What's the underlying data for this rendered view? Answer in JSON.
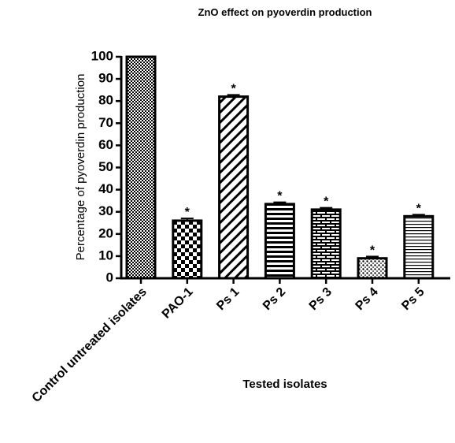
{
  "chart_data": {
    "type": "bar",
    "title": "ZnO effect on pyoverdin production",
    "xlabel": "Tested isolates",
    "ylabel": "Percentage of pyoverdin production",
    "categories": [
      "Control untreated isolates",
      "PAO-1",
      "Ps 1",
      "Ps 2",
      "Ps 3",
      "Ps 4",
      "Ps 5"
    ],
    "values": [
      100,
      26,
      82,
      33.5,
      31,
      9,
      28
    ],
    "errors": [
      0,
      1,
      0.8,
      0.8,
      0.8,
      0.8,
      0.7
    ],
    "significance_marks": [
      null,
      "*",
      "*",
      "*",
      "*",
      "*",
      "*"
    ],
    "color": "#000000",
    "ylim": [
      0,
      100
    ],
    "yticks": [
      0,
      10,
      20,
      30,
      40,
      50,
      60,
      70,
      80,
      90,
      100
    ]
  }
}
